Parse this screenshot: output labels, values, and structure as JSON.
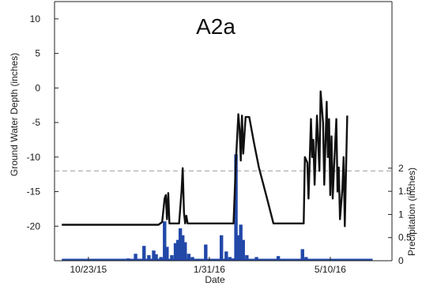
{
  "chart_data": {
    "type": "line",
    "title": "A2a",
    "xlabel": "Date",
    "ylabel": "Ground Water Depth (inches)",
    "y2label": "Precipitation (inches)",
    "x_range": [
      "2015-09-25",
      "2016-06-30"
    ],
    "x_ticks": [
      {
        "date": "2015-10-23",
        "label": "10/23/15"
      },
      {
        "date": "2016-01-31",
        "label": "1/31/16"
      },
      {
        "date": "2016-05-10",
        "label": "5/10/16"
      }
    ],
    "ylim": [
      -25,
      12.5
    ],
    "y_ticks": [
      {
        "value": 10,
        "label": "10"
      },
      {
        "value": 5,
        "label": "5"
      },
      {
        "value": 0,
        "label": "0"
      },
      {
        "value": -5,
        "label": "-5"
      },
      {
        "value": -10,
        "label": "-10"
      },
      {
        "value": -15,
        "label": "-15"
      },
      {
        "value": -20,
        "label": "-20"
      }
    ],
    "y2lim": [
      0,
      5.6
    ],
    "y2_ticks": [
      {
        "value": 0,
        "label": "0"
      },
      {
        "value": 0.5,
        "label": "0.5"
      },
      {
        "value": 1,
        "label": "1"
      },
      {
        "value": 1.5,
        "label": "1.5"
      },
      {
        "value": 2,
        "label": "2"
      }
    ],
    "reference_line": {
      "y": -12,
      "style": "dashed"
    },
    "grid": false,
    "series": [
      {
        "kind": "line",
        "axis": "left",
        "color": "#111111",
        "points": [
          [
            "2015-10-01",
            -19.8
          ],
          [
            "2015-12-20",
            -19.8
          ],
          [
            "2015-12-23",
            -19.4
          ],
          [
            "2015-12-25",
            -16
          ],
          [
            "2015-12-26",
            -15.5
          ],
          [
            "2015-12-27",
            -19
          ],
          [
            "2015-12-28",
            -15.2
          ],
          [
            "2015-12-29",
            -19.6
          ],
          [
            "2016-01-06",
            -19.6
          ],
          [
            "2016-01-08",
            -15
          ],
          [
            "2016-01-09",
            -11.6
          ],
          [
            "2016-01-10",
            -18
          ],
          [
            "2016-01-11",
            -19.6
          ],
          [
            "2016-01-12",
            -18.5
          ],
          [
            "2016-01-13",
            -19.6
          ],
          [
            "2016-02-20",
            -19.6
          ],
          [
            "2016-02-22",
            -10.5
          ],
          [
            "2016-02-24",
            -3.8
          ],
          [
            "2016-02-25",
            -6
          ],
          [
            "2016-02-26",
            -10.5
          ],
          [
            "2016-02-27",
            -4
          ],
          [
            "2016-02-28",
            -9.5
          ],
          [
            "2016-03-01",
            -4.2
          ],
          [
            "2016-03-04",
            -4.2
          ],
          [
            "2016-03-08",
            -8
          ],
          [
            "2016-03-12",
            -11.5
          ],
          [
            "2016-03-18",
            -15.5
          ],
          [
            "2016-03-24",
            -19.6
          ],
          [
            "2016-04-18",
            -19.6
          ],
          [
            "2016-04-19",
            -10
          ],
          [
            "2016-04-21",
            -10.8
          ],
          [
            "2016-04-22",
            -16
          ],
          [
            "2016-04-24",
            -4.5
          ],
          [
            "2016-04-25",
            -10
          ],
          [
            "2016-04-26",
            -7.5
          ],
          [
            "2016-04-27",
            -14
          ],
          [
            "2016-04-29",
            -4
          ],
          [
            "2016-05-01",
            -12
          ],
          [
            "2016-05-02",
            -0.5
          ],
          [
            "2016-05-04",
            -5
          ],
          [
            "2016-05-05",
            -14
          ],
          [
            "2016-05-07",
            -2
          ],
          [
            "2016-05-08",
            -10
          ],
          [
            "2016-05-09",
            -4.5
          ],
          [
            "2016-05-10",
            -15.5
          ],
          [
            "2016-05-11",
            -7
          ],
          [
            "2016-05-12",
            -16
          ],
          [
            "2016-05-13",
            -12
          ],
          [
            "2016-05-15",
            -4.5
          ],
          [
            "2016-05-16",
            -15
          ],
          [
            "2016-05-17",
            -11.5
          ],
          [
            "2016-05-18",
            -19
          ],
          [
            "2016-05-20",
            -14.5
          ],
          [
            "2016-05-21",
            -10
          ],
          [
            "2016-05-22",
            -20
          ],
          [
            "2016-05-24",
            -4
          ]
        ]
      },
      {
        "kind": "bar",
        "axis": "right",
        "color": "#2248a8",
        "points": [
          [
            "2015-10-10",
            0.03
          ],
          [
            "2015-10-20",
            0.02
          ],
          [
            "2015-11-02",
            0.03
          ],
          [
            "2015-11-15",
            0.02
          ],
          [
            "2015-11-25",
            0.05
          ],
          [
            "2015-12-01",
            0.15
          ],
          [
            "2015-12-08",
            0.32
          ],
          [
            "2015-12-12",
            0.12
          ],
          [
            "2015-12-16",
            0.22
          ],
          [
            "2015-12-18",
            0.14
          ],
          [
            "2015-12-22",
            0.08
          ],
          [
            "2015-12-25",
            0.85
          ],
          [
            "2015-12-27",
            0.3
          ],
          [
            "2015-12-31",
            0.12
          ],
          [
            "2016-01-03",
            0.38
          ],
          [
            "2016-01-05",
            0.45
          ],
          [
            "2016-01-07",
            0.7
          ],
          [
            "2016-01-09",
            0.55
          ],
          [
            "2016-01-11",
            0.4
          ],
          [
            "2016-01-14",
            0.15
          ],
          [
            "2016-01-17",
            0.08
          ],
          [
            "2016-01-28",
            0.35
          ],
          [
            "2016-02-10",
            0.55
          ],
          [
            "2016-02-14",
            0.2
          ],
          [
            "2016-02-17",
            0.08
          ],
          [
            "2016-02-20",
            0.05
          ],
          [
            "2016-02-22",
            2.3
          ],
          [
            "2016-02-24",
            0.55
          ],
          [
            "2016-02-26",
            0.78
          ],
          [
            "2016-02-28",
            0.45
          ],
          [
            "2016-03-02",
            0.12
          ],
          [
            "2016-03-10",
            0.08
          ],
          [
            "2016-03-20",
            0.03
          ],
          [
            "2016-03-28",
            0.1
          ],
          [
            "2016-04-08",
            0.04
          ],
          [
            "2016-04-17",
            0.25
          ],
          [
            "2016-04-20",
            0.08
          ],
          [
            "2016-04-26",
            0.03
          ],
          [
            "2016-05-05",
            0.02
          ],
          [
            "2016-05-15",
            0.03
          ]
        ]
      }
    ]
  }
}
